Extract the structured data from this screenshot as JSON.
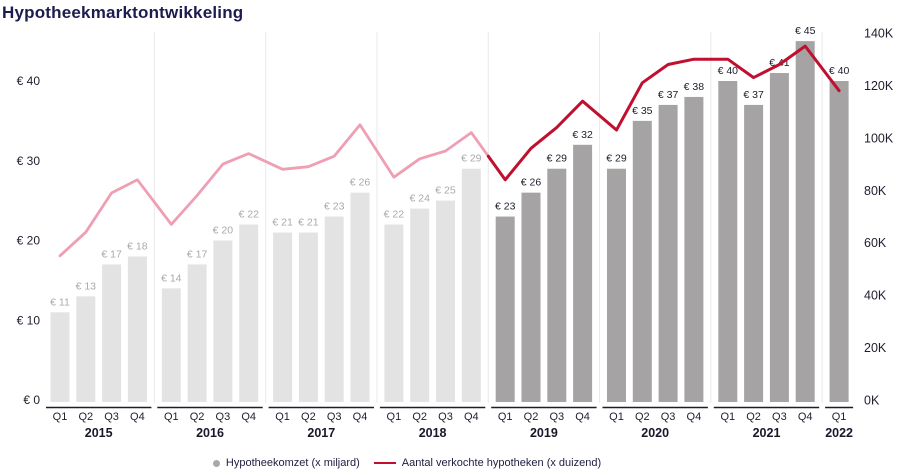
{
  "title": "Hypotheekmarktontwikkeling",
  "legend": {
    "bars": "Hypotheekomzet (x miljard)",
    "line": "Aantal verkochte hypotheken (x duizend)"
  },
  "chart_data": {
    "type": "bar",
    "subtype": "grouped-quarterly bars with overlaid line on secondary axis",
    "title": "Hypotheekmarktontwikkeling",
    "series": [
      {
        "name": "Hypotheekomzet (x miljard)",
        "type": "bar",
        "axis": "left"
      },
      {
        "name": "Aantal verkochte hypotheken (x duizend)",
        "type": "line",
        "axis": "right"
      }
    ],
    "x_groups": [
      {
        "year": "2015",
        "quarters": [
          "Q1",
          "Q2",
          "Q3",
          "Q4"
        ],
        "omzet_miljard": [
          11,
          13,
          17,
          18
        ],
        "hypotheken_duizend": [
          55,
          64,
          79,
          84
        ]
      },
      {
        "year": "2016",
        "quarters": [
          "Q1",
          "Q2",
          "Q3",
          "Q4"
        ],
        "omzet_miljard": [
          14,
          17,
          20,
          22
        ],
        "hypotheken_duizend": [
          67,
          78,
          90,
          94
        ]
      },
      {
        "year": "2017",
        "quarters": [
          "Q1",
          "Q2",
          "Q3",
          "Q4"
        ],
        "omzet_miljard": [
          21,
          21,
          23,
          26
        ],
        "hypotheken_duizend": [
          88,
          89,
          93,
          105
        ]
      },
      {
        "year": "2018",
        "quarters": [
          "Q1",
          "Q2",
          "Q3",
          "Q4"
        ],
        "omzet_miljard": [
          22,
          24,
          25,
          29
        ],
        "hypotheken_duizend": [
          85,
          92,
          95,
          102
        ]
      },
      {
        "year": "2019",
        "quarters": [
          "Q1",
          "Q2",
          "Q3",
          "Q4"
        ],
        "omzet_miljard": [
          23,
          26,
          29,
          32
        ],
        "hypotheken_duizend": [
          84,
          96,
          104,
          114
        ]
      },
      {
        "year": "2020",
        "quarters": [
          "Q1",
          "Q2",
          "Q3",
          "Q4"
        ],
        "omzet_miljard": [
          29,
          35,
          37,
          38
        ],
        "hypotheken_duizend": [
          103,
          121,
          128,
          130
        ]
      },
      {
        "year": "2021",
        "quarters": [
          "Q1",
          "Q2",
          "Q3",
          "Q4"
        ],
        "omzet_miljard": [
          40,
          37,
          41,
          45
        ],
        "hypotheken_duizend": [
          130,
          123,
          128,
          135
        ]
      },
      {
        "year": "2022",
        "quarters": [
          "Q1"
        ],
        "omzet_miljard": [
          40
        ],
        "hypotheken_duizend": [
          118
        ]
      }
    ],
    "bar_label_prefix": "€ ",
    "left_axis": {
      "prefix": "€ ",
      "ticks": [
        0,
        10,
        20,
        30,
        40
      ],
      "range": [
        0,
        45
      ]
    },
    "right_axis": {
      "suffix": "K",
      "ticks": [
        0,
        20,
        40,
        60,
        80,
        100,
        120,
        140
      ],
      "range": [
        0,
        140
      ]
    },
    "era_split_index": 16,
    "era_note": "2015-2018 rendered muted/light, 2019-2022 rendered dark/highlighted",
    "grid": "vertical separators between year groups only",
    "legend_position": "bottom-center",
    "colors": {
      "bar_past": "#e4e3e3",
      "bar_recent": "#a5a3a3",
      "bar_label_past": "#aaa9a9",
      "bar_label_recent": "#1d1d2b",
      "line_past": "#ef9fb3",
      "line_recent": "#c00f2f",
      "axis_text": "#1e1e2e",
      "year_text": "#18182a",
      "axis_line": "#1d1d2b",
      "separator": "#e9e9e9",
      "title_text": "#1c1c4e"
    }
  }
}
